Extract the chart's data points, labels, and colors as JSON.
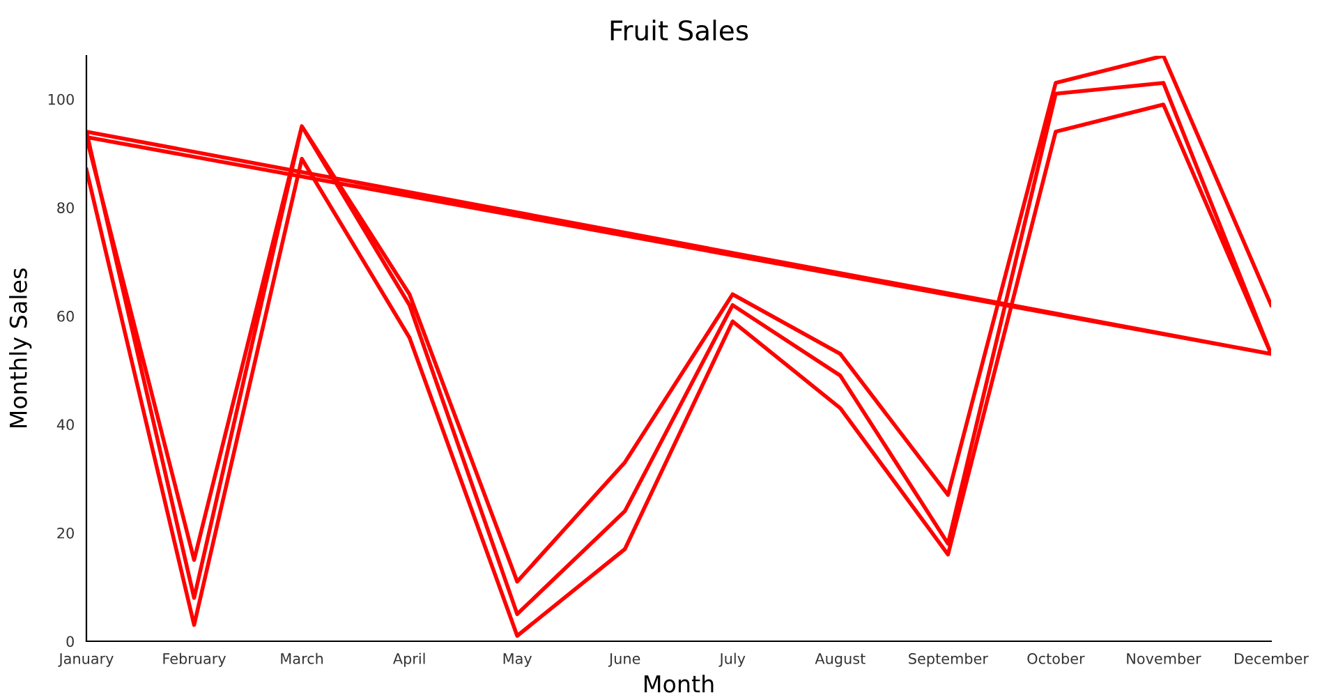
{
  "chart_data": {
    "type": "line",
    "title": "Fruit Sales",
    "xlabel": "Month",
    "ylabel": "Monthly Sales",
    "categories": [
      "January",
      "February",
      "March",
      "April",
      "May",
      "June",
      "July",
      "August",
      "September",
      "October",
      "November",
      "December"
    ],
    "series": [
      {
        "color": "#ff0000",
        "x": [
          "January",
          "February",
          "March",
          "April",
          "May",
          "June",
          "July",
          "August",
          "September",
          "October",
          "November",
          "December",
          "January",
          "February",
          "March",
          "April",
          "May",
          "June",
          "July",
          "August",
          "September",
          "October",
          "November",
          "December",
          "January",
          "February",
          "March",
          "April",
          "May",
          "June",
          "July",
          "August",
          "September",
          "October",
          "November",
          "December"
        ],
        "values": [
          87,
          3,
          89,
          56,
          1,
          17,
          59,
          43,
          16,
          94,
          99,
          53,
          94,
          8,
          95,
          62,
          5,
          24,
          62,
          49,
          18,
          101,
          103,
          53,
          93,
          15,
          95,
          64,
          11,
          33,
          64,
          53,
          27,
          103,
          108,
          62
        ]
      }
    ],
    "ylim": [
      0,
      108
    ],
    "yticks": [
      0,
      20,
      40,
      60,
      80,
      100
    ],
    "grid": false
  }
}
